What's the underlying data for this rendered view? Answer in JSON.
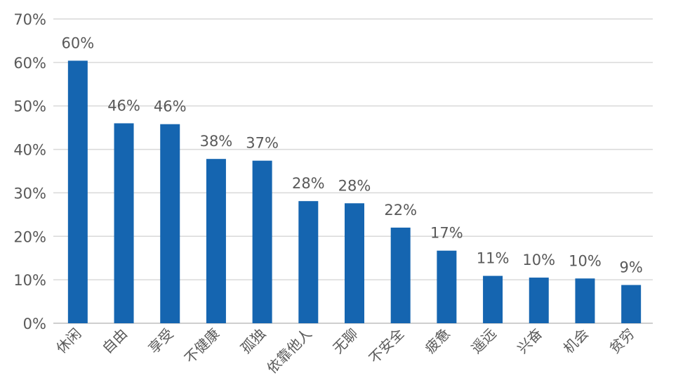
{
  "chart_data": {
    "type": "bar",
    "title": "",
    "xlabel": "",
    "ylabel": "",
    "categories": [
      "休闲",
      "自由",
      "享受",
      "不健康",
      "孤独",
      "依靠他人",
      "无聊",
      "不安全",
      "疲惫",
      "遥远",
      "兴奋",
      "机会",
      "贫穷"
    ],
    "values": [
      60.4,
      46.0,
      45.8,
      37.8,
      37.4,
      28.1,
      27.6,
      22.0,
      16.7,
      10.9,
      10.5,
      10.3,
      8.8
    ],
    "data_labels": [
      "60%",
      "46%",
      "46%",
      "38%",
      "37%",
      "28%",
      "28%",
      "22%",
      "17%",
      "11%",
      "10%",
      "10%",
      "9%"
    ],
    "ylim": [
      0,
      70
    ],
    "yticks": [
      0,
      10,
      20,
      30,
      40,
      50,
      60,
      70
    ],
    "ytick_labels": [
      "0%",
      "10%",
      "20%",
      "30%",
      "40%",
      "50%",
      "60%",
      "70%"
    ],
    "grid": true,
    "legend": "none",
    "colors": {
      "bar": "#1565b0",
      "grid": "#d9d9d9",
      "axis": "#bfbfbf",
      "text": "#595959"
    }
  }
}
